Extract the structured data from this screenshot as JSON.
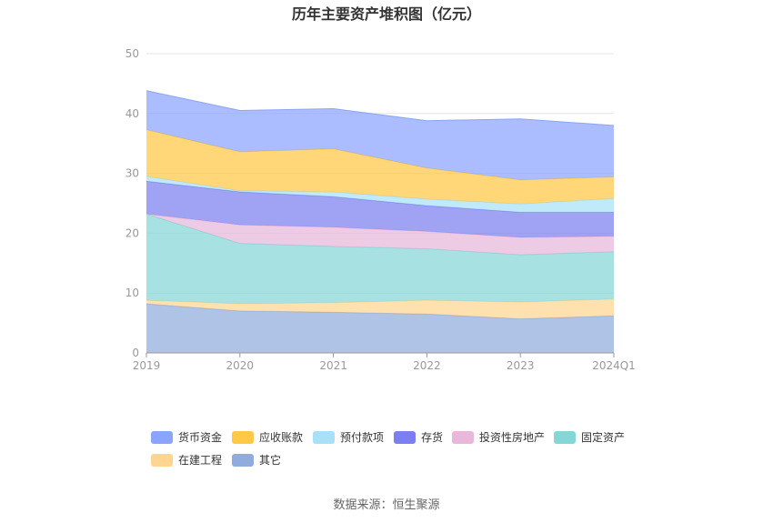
{
  "chart_data": {
    "type": "area",
    "stacked": true,
    "title": "历年主要资产堆积图（亿元）",
    "source": "数据来源：恒生聚源",
    "categories": [
      "2019",
      "2020",
      "2021",
      "2022",
      "2023",
      "2024Q1"
    ],
    "ylim": [
      0,
      50
    ],
    "yticks": [
      "0",
      "10",
      "20",
      "30",
      "40",
      "50"
    ],
    "grid": true,
    "legend_position": "bottom",
    "series": [
      {
        "name": "其它",
        "color": "#8facdc",
        "values": [
          8.2,
          7.0,
          6.8,
          6.5,
          5.7,
          6.2
        ]
      },
      {
        "name": "在建工程",
        "color": "#ffd591",
        "values": [
          0.6,
          1.2,
          1.6,
          2.3,
          2.8,
          2.8
        ]
      },
      {
        "name": "固定资产",
        "color": "#85d6d6",
        "values": [
          14.4,
          10.1,
          9.4,
          8.6,
          7.9,
          7.9
        ]
      },
      {
        "name": "投资性房地产",
        "color": "#e8b7d9",
        "values": [
          0.0,
          3.1,
          3.2,
          2.9,
          2.9,
          2.6
        ]
      },
      {
        "name": "存货",
        "color": "#7b7ff0",
        "values": [
          5.5,
          5.5,
          5.1,
          4.3,
          4.2,
          4.0
        ]
      },
      {
        "name": "预付款项",
        "color": "#a8e0f8",
        "values": [
          0.8,
          0.2,
          0.8,
          1.1,
          1.4,
          2.3
        ]
      },
      {
        "name": "应收账款",
        "color": "#ffc845",
        "values": [
          7.8,
          6.5,
          7.2,
          5.2,
          4.0,
          3.6
        ]
      },
      {
        "name": "货币资金",
        "color": "#8aa4ff",
        "values": [
          6.5,
          6.9,
          6.7,
          7.9,
          10.2,
          8.6
        ]
      }
    ],
    "legend_order": [
      "货币资金",
      "应收账款",
      "预付款项",
      "存货",
      "投资性房地产",
      "固定资产",
      "在建工程",
      "其它"
    ]
  }
}
